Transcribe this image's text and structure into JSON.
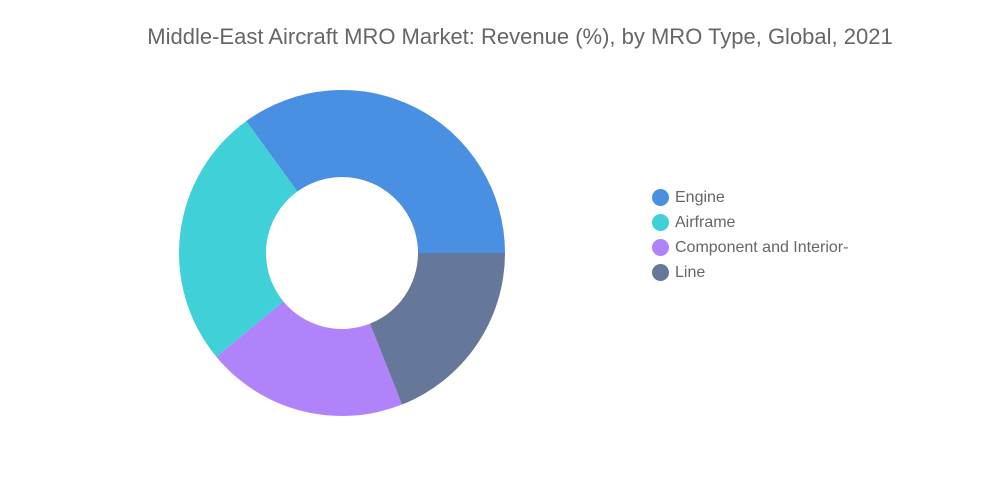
{
  "chart_data": {
    "type": "pie",
    "variant": "donut",
    "title": "Middle-East Aircraft MRO Market: Revenue (%), by MRO Type, Global, 2021",
    "categories": [
      "Engine",
      "Airframe",
      "Component and Interior-",
      "Line"
    ],
    "values": [
      35,
      26,
      20,
      19
    ],
    "colors": [
      "#4a90e2",
      "#40d1d8",
      "#b083fb",
      "#66789a"
    ],
    "legend_position": "right",
    "start_angle": "3 o'clock, counterclockwise"
  }
}
